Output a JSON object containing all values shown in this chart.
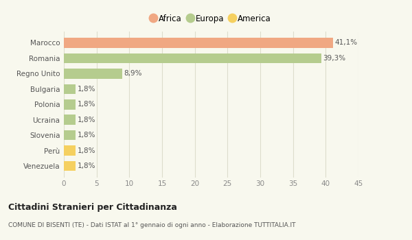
{
  "categories": [
    "Venezuela",
    "Perù",
    "Slovenia",
    "Ucraina",
    "Polonia",
    "Bulgaria",
    "Regno Unito",
    "Romania",
    "Marocco"
  ],
  "values": [
    1.8,
    1.8,
    1.8,
    1.8,
    1.8,
    1.8,
    8.9,
    39.3,
    41.1
  ],
  "labels": [
    "1,8%",
    "1,8%",
    "1,8%",
    "1,8%",
    "1,8%",
    "1,8%",
    "8,9%",
    "39,3%",
    "41,1%"
  ],
  "colors": [
    "#f5d060",
    "#f5d060",
    "#b5cc8e",
    "#b5cc8e",
    "#b5cc8e",
    "#b5cc8e",
    "#b5cc8e",
    "#b5cc8e",
    "#f0a883"
  ],
  "legend_items": [
    {
      "label": "Africa",
      "color": "#f0a883"
    },
    {
      "label": "Europa",
      "color": "#b5cc8e"
    },
    {
      "label": "America",
      "color": "#f5d060"
    }
  ],
  "xlim": [
    0,
    45
  ],
  "xticks": [
    0,
    5,
    10,
    15,
    20,
    25,
    30,
    35,
    40,
    45
  ],
  "title": "Cittadini Stranieri per Cittadinanza",
  "subtitle": "COMUNE DI BISENTI (TE) - Dati ISTAT al 1° gennaio di ogni anno - Elaborazione TUTTITALIA.IT",
  "background_color": "#f8f8ee",
  "grid_color": "#ddddcc",
  "bar_height": 0.65
}
